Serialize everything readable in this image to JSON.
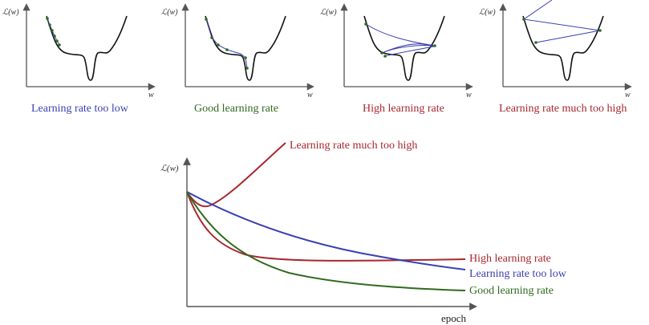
{
  "colors": {
    "blue": "#3b3fb0",
    "green": "#2f6b1d",
    "red": "#a8282f",
    "axis": "#555555",
    "curve": "#111111"
  },
  "panels": [
    {
      "label": "Learning rate too low",
      "y_axis_label": "ℒ(w)",
      "x_axis_label": "w"
    },
    {
      "label": "Good learning rate",
      "y_axis_label": "ℒ(w)",
      "x_axis_label": "w"
    },
    {
      "label": "High learning rate",
      "y_axis_label": "ℒ(w)",
      "x_axis_label": "w"
    },
    {
      "label": "Learning rate much too high",
      "y_axis_label": "ℒ(w)",
      "x_axis_label": "w"
    }
  ],
  "main_chart": {
    "y_axis_label": "ℒ(w)",
    "x_axis_label": "epoch",
    "series": [
      {
        "name": "Learning rate much too high"
      },
      {
        "name": "High learning rate"
      },
      {
        "name": "Learning rate too low"
      },
      {
        "name": "Good learning rate"
      }
    ]
  }
}
